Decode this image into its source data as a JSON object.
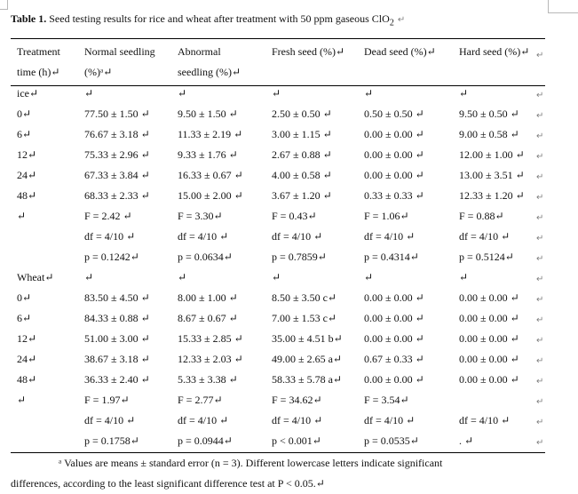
{
  "title": {
    "bold": "Table 1.",
    "text": " Seed testing results for rice and wheat after treatment with 50 ppm gaseous ClO",
    "sub": "2",
    "mark": "↵"
  },
  "header": {
    "c0": [
      "Treatment",
      "time (h)↵"
    ],
    "c1": [
      "Normal seedling",
      "(%)ᵃ↵"
    ],
    "c2": [
      "Abnormal",
      "seedling (%)↵"
    ],
    "c3": [
      "Fresh seed (%)↵"
    ],
    "c4": [
      "Dead seed (%)↵"
    ],
    "c5": [
      "Hard seed (%)↵"
    ]
  },
  "rows": [
    [
      "ice↵",
      "↵",
      "↵",
      "↵",
      "↵",
      "↵"
    ],
    [
      "0↵",
      "77.50 ± 1.50 ↵",
      "9.50 ± 1.50 ↵",
      "2.50 ± 0.50 ↵",
      "0.50 ± 0.50 ↵",
      "9.50 ± 0.50 ↵"
    ],
    [
      "6↵",
      "76.67 ± 3.18 ↵",
      "11.33 ± 2.19 ↵",
      "3.00 ± 1.15 ↵",
      "0.00 ± 0.00 ↵",
      "9.00 ± 0.58 ↵"
    ],
    [
      "12↵",
      "75.33 ± 2.96 ↵",
      "9.33 ± 1.76 ↵",
      "2.67 ± 0.88 ↵",
      "0.00 ± 0.00 ↵",
      "12.00 ± 1.00 ↵"
    ],
    [
      "24↵",
      "67.33 ± 3.84 ↵",
      "16.33 ± 0.67 ↵",
      "4.00 ± 0.58 ↵",
      "0.00 ± 0.00 ↵",
      "13.00 ± 3.51 ↵"
    ],
    [
      "48↵",
      "68.33 ± 2.33 ↵",
      "15.00 ± 2.00 ↵",
      "3.67 ± 1.20 ↵",
      "0.33 ± 0.33 ↵",
      "12.33 ± 1.20 ↵"
    ],
    [
      "↵",
      "F = 2.42 ↵",
      "F = 3.30↵",
      "F = 0.43↵",
      "F = 1.06↵",
      "F = 0.88↵"
    ],
    [
      "",
      "df = 4/10 ↵",
      "df = 4/10 ↵",
      "df = 4/10 ↵",
      "df = 4/10 ↵",
      "df = 4/10 ↵"
    ],
    [
      "",
      "p = 0.1242↵",
      "p = 0.0634↵",
      "p = 0.7859↵",
      "p = 0.4314↵",
      "p = 0.5124↵"
    ],
    [
      "Wheat↵",
      "↵",
      "↵",
      "↵",
      "↵",
      "↵"
    ],
    [
      "0↵",
      "83.50 ± 4.50 ↵",
      "8.00 ± 1.00 ↵",
      "8.50 ± 3.50 c↵",
      "0.00 ± 0.00 ↵",
      "0.00 ± 0.00 ↵"
    ],
    [
      "6↵",
      "84.33 ± 0.88 ↵",
      "8.67 ± 0.67 ↵",
      "7.00 ± 1.53 c↵",
      "0.00 ± 0.00 ↵",
      "0.00 ± 0.00 ↵"
    ],
    [
      "12↵",
      "51.00 ± 3.00 ↵",
      "15.33 ± 2.85 ↵",
      "35.00 ± 4.51 b↵",
      "0.00 ± 0.00 ↵",
      "0.00 ± 0.00 ↵"
    ],
    [
      "24↵",
      "38.67 ± 3.18 ↵",
      "12.33 ± 2.03 ↵",
      "49.00 ± 2.65 a↵",
      "0.67 ± 0.33 ↵",
      "0.00 ± 0.00 ↵"
    ],
    [
      "48↵",
      "36.33 ± 2.40 ↵",
      "5.33 ± 3.38 ↵",
      "58.33 ± 5.78 a↵",
      "0.00 ± 0.00 ↵",
      "0.00 ± 0.00 ↵"
    ],
    [
      "↵",
      "F = 1.97↵",
      "F = 2.77↵",
      "F = 34.62↵",
      "F = 3.54↵",
      ""
    ],
    [
      "",
      "df = 4/10 ↵",
      "df = 4/10 ↵",
      "df = 4/10 ↵",
      "df = 4/10 ↵",
      "df = 4/10 ↵"
    ],
    [
      "",
      "p = 0.1758↵",
      "p = 0.0944↵",
      "p < 0.001↵",
      "p = 0.0535↵",
      ". ↵"
    ]
  ],
  "row_end_mark": "↵",
  "note": {
    "line1": "ᵃ Values are means ± standard error (n = 3). Different lowercase letters indicate significant",
    "line2": "differences, according to the least significant difference test at P < 0.05.↵"
  }
}
